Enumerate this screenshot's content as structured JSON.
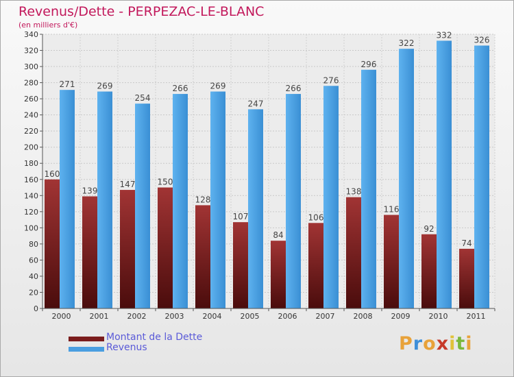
{
  "title": "Revenus/Dette - PERPEZAC-LE-BLANC",
  "subtitle": "(en milliers d'€)",
  "legend": [
    {
      "label": "Montant de la Dette",
      "color": "#7a1c1c"
    },
    {
      "label": "Revenus",
      "color": "#4a9ee0"
    }
  ],
  "logo": {
    "letters": [
      "P",
      "r",
      "o",
      "x",
      "i",
      "t",
      "i"
    ],
    "colors": [
      "#e8a23a",
      "#3f8fd9",
      "#e8a23a",
      "#c73a2a",
      "#e0c23a",
      "#7ab83a",
      "#e8a23a"
    ]
  },
  "chart_data": {
    "type": "bar",
    "title": "Revenus/Dette - PERPEZAC-LE-BLANC",
    "ylabel": "(en milliers d'€)",
    "xlabel": "",
    "categories": [
      "2000",
      "2001",
      "2002",
      "2003",
      "2004",
      "2005",
      "2006",
      "2007",
      "2008",
      "2009",
      "2010",
      "2011"
    ],
    "series": [
      {
        "name": "Montant de la Dette",
        "values": [
          160,
          139,
          147,
          150,
          128,
          107,
          84,
          106,
          138,
          116,
          92,
          74
        ],
        "color": "#7a1c1c"
      },
      {
        "name": "Revenus",
        "values": [
          271,
          269,
          254,
          266,
          269,
          247,
          266,
          276,
          296,
          322,
          332,
          326
        ],
        "color": "#4a9ee0"
      }
    ],
    "ylim": [
      0,
      340
    ],
    "ytick_step": 20,
    "grid": true,
    "legend_position": "bottom-left"
  }
}
